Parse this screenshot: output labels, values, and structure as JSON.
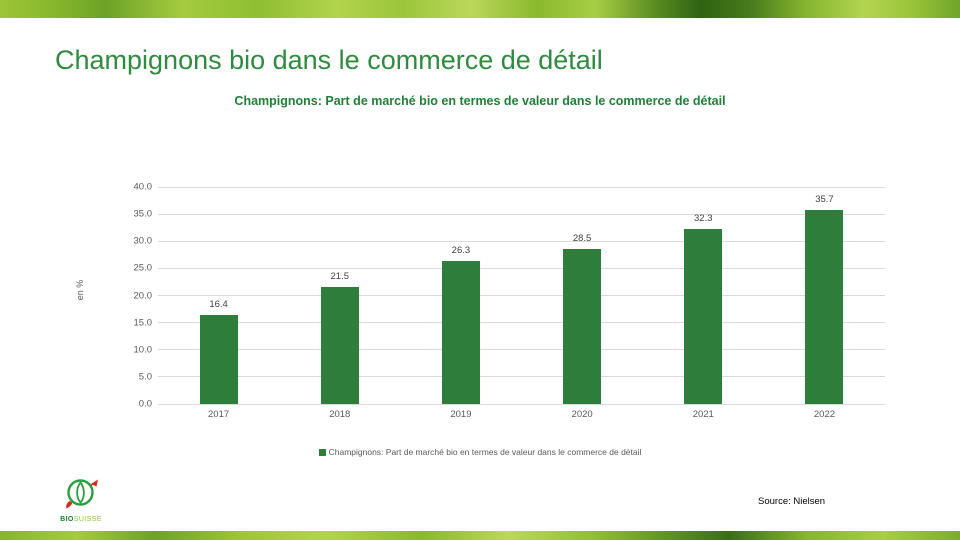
{
  "slide": {
    "title": "Champignons bio dans le commerce de détail"
  },
  "chart_data": {
    "type": "bar",
    "title": "Champignons: Part de marché bio en termes de valeur dans le commerce de détail",
    "categories": [
      "2017",
      "2018",
      "2019",
      "2020",
      "2021",
      "2022"
    ],
    "values": [
      16.4,
      21.5,
      26.3,
      28.5,
      32.3,
      35.7
    ],
    "xlabel": "",
    "ylabel": "en %",
    "ylim": [
      0,
      40
    ],
    "ytick_step": 5,
    "ytick_format_decimals": 1,
    "grid": true,
    "bar_color": "#2e7d3b",
    "legend": {
      "position": "bottom",
      "entries": [
        "Champignons: Part de marché bio en termes de valeur dans le commerce de détail"
      ]
    }
  },
  "footer": {
    "source": "Source: Nielsen",
    "logo": {
      "bold": "BIO",
      "light": "SUISSE"
    }
  },
  "colors": {
    "title_green": "#2e8b3f",
    "chart_title_green": "#1f8038",
    "bar_green": "#2e7d3b",
    "axis_text": "#595959",
    "data_label": "#404040",
    "gridline": "#d9d9d9",
    "logo_red": "#d52b1e",
    "logo_green": "#2aa03c"
  }
}
